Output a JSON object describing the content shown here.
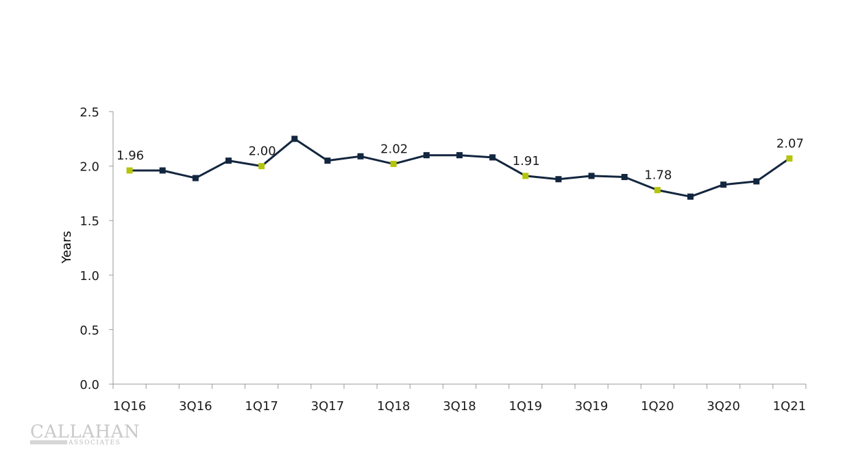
{
  "chart_data": {
    "type": "line",
    "title": "",
    "xlabel": "",
    "ylabel": "Years",
    "ylim": [
      0,
      2.5
    ],
    "yticks": [
      "0.0",
      "0.5",
      "1.0",
      "1.5",
      "2.0",
      "2.5"
    ],
    "yticks_values": [
      0,
      0.5,
      1.0,
      1.5,
      2.0,
      2.5
    ],
    "categories": [
      "1Q16",
      "2Q16",
      "3Q16",
      "4Q16",
      "1Q17",
      "2Q17",
      "3Q17",
      "4Q17",
      "1Q18",
      "2Q18",
      "3Q18",
      "4Q18",
      "1Q19",
      "2Q19",
      "3Q19",
      "4Q19",
      "1Q20",
      "2Q20",
      "3Q20",
      "4Q20",
      "1Q21"
    ],
    "xtick_labels": [
      "1Q16",
      "3Q16",
      "1Q17",
      "3Q17",
      "1Q18",
      "3Q18",
      "1Q19",
      "3Q19",
      "1Q20",
      "3Q20",
      "1Q21"
    ],
    "series": [
      {
        "name": "Years",
        "values": [
          1.96,
          1.96,
          1.89,
          2.05,
          2.0,
          2.25,
          2.05,
          2.09,
          2.02,
          2.1,
          2.1,
          2.08,
          1.91,
          1.88,
          1.91,
          1.9,
          1.78,
          1.72,
          1.83,
          1.86,
          2.07
        ],
        "color": "#13263f"
      }
    ],
    "highlight_indices": [
      0,
      4,
      8,
      12,
      16,
      20
    ],
    "highlight_color": "#b5c40c",
    "data_labels": [
      {
        "index": 0,
        "text": "1.96"
      },
      {
        "index": 4,
        "text": "2.00"
      },
      {
        "index": 8,
        "text": "2.02"
      },
      {
        "index": 12,
        "text": "1.91"
      },
      {
        "index": 16,
        "text": "1.78"
      },
      {
        "index": 20,
        "text": "2.07"
      }
    ],
    "grid": false,
    "legend": "none"
  },
  "logo": {
    "main": "CALLAHAN",
    "sub": "ASSOCIATES"
  }
}
